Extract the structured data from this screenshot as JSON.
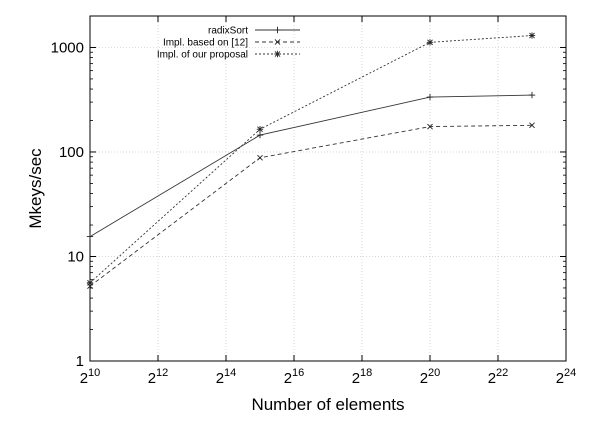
{
  "chart_data": {
    "type": "line",
    "title": "",
    "xlabel": "Number of elements",
    "ylabel": "Mkeys/sec",
    "x_scale": "log2",
    "y_scale": "log10",
    "xlim": [
      1024,
      16777216
    ],
    "ylim": [
      1,
      2000
    ],
    "x_ticks": [
      {
        "value": 1024,
        "base": "2",
        "exp": "10"
      },
      {
        "value": 4096,
        "base": "2",
        "exp": "12"
      },
      {
        "value": 16384,
        "base": "2",
        "exp": "14"
      },
      {
        "value": 65536,
        "base": "2",
        "exp": "16"
      },
      {
        "value": 262144,
        "base": "2",
        "exp": "18"
      },
      {
        "value": 1048576,
        "base": "2",
        "exp": "20"
      },
      {
        "value": 4194304,
        "base": "2",
        "exp": "22"
      },
      {
        "value": 16777216,
        "base": "2",
        "exp": "24"
      }
    ],
    "y_ticks": [
      {
        "value": 1,
        "label": "1"
      },
      {
        "value": 10,
        "label": "10"
      },
      {
        "value": 100,
        "label": "100"
      },
      {
        "value": 1000,
        "label": "1000"
      }
    ],
    "grid": true,
    "legend_position": "top-right",
    "series": [
      {
        "name": "radixSort",
        "marker": "+",
        "dash": "solid",
        "color": "#333333",
        "points": [
          {
            "x": 1024,
            "y": 15.5
          },
          {
            "x": 32768,
            "y": 145
          },
          {
            "x": 1048576,
            "y": 335
          },
          {
            "x": 8388608,
            "y": 350
          }
        ]
      },
      {
        "name": "Impl. based on [12]",
        "marker": "x",
        "dash": "dashed",
        "color": "#333333",
        "points": [
          {
            "x": 1024,
            "y": 5.2
          },
          {
            "x": 32768,
            "y": 88
          },
          {
            "x": 1048576,
            "y": 175
          },
          {
            "x": 8388608,
            "y": 180
          }
        ]
      },
      {
        "name": "Impl. of our proposal",
        "marker": "*",
        "dash": "dotted",
        "color": "#333333",
        "points": [
          {
            "x": 1024,
            "y": 5.6
          },
          {
            "x": 32768,
            "y": 165
          },
          {
            "x": 1048576,
            "y": 1120
          },
          {
            "x": 8388608,
            "y": 1300
          }
        ]
      }
    ]
  }
}
